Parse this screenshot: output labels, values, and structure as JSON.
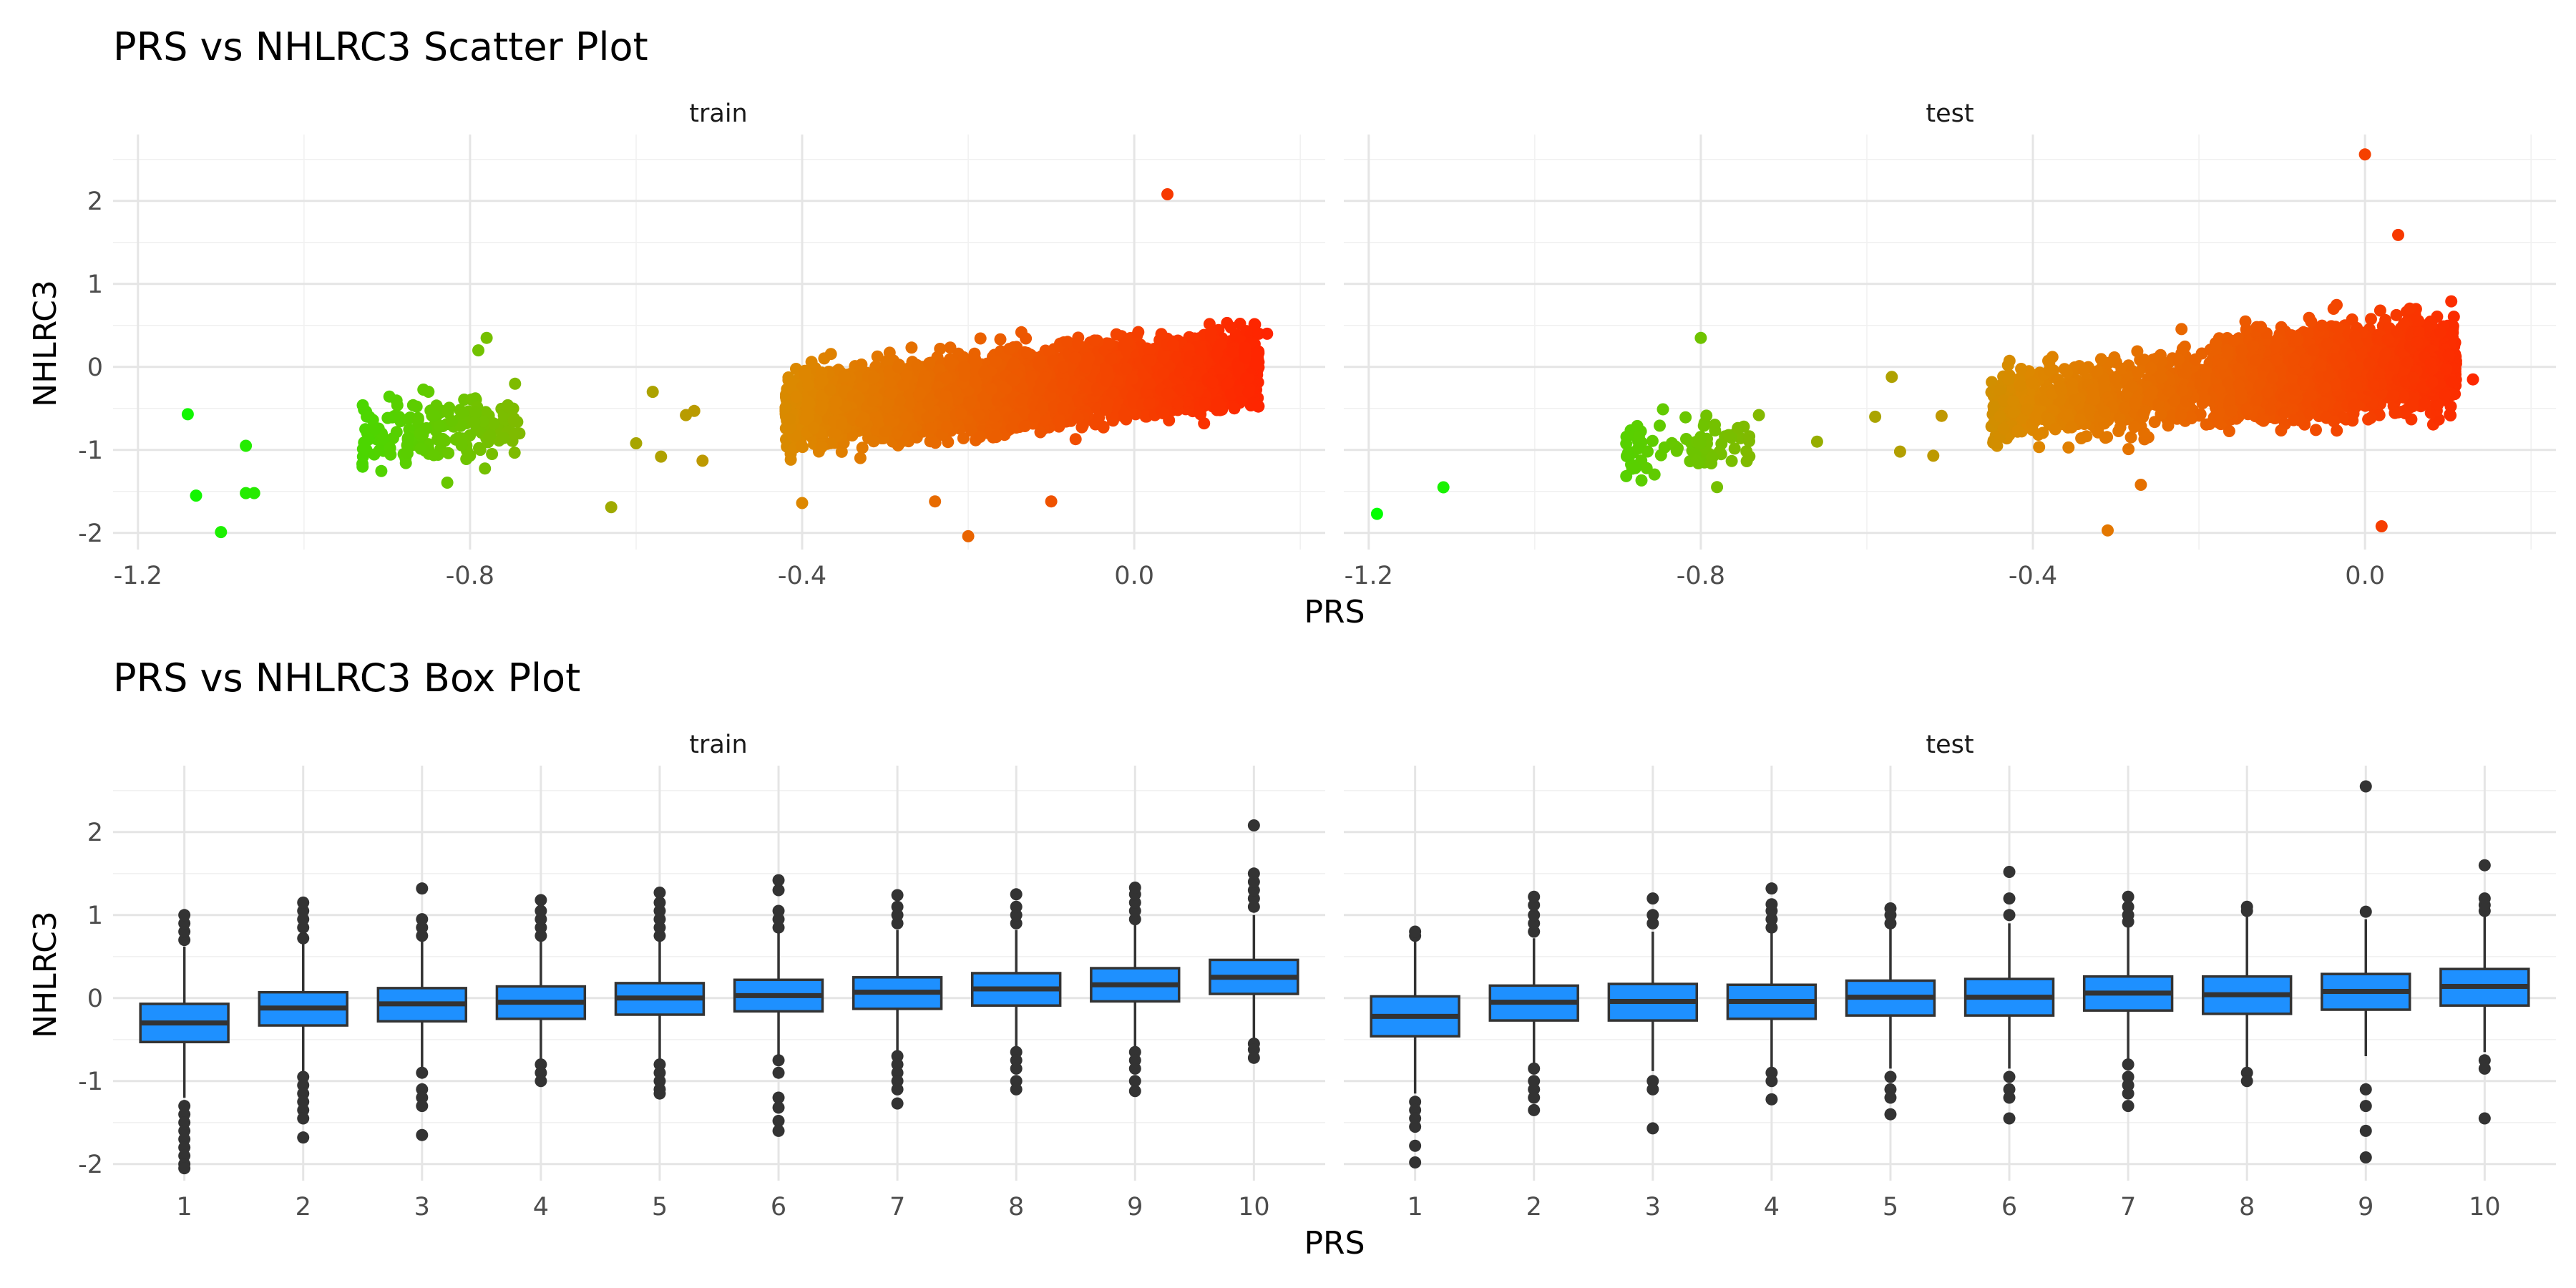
{
  "figure": {
    "scatter_title": "PRS vs NHLRC3 Scatter Plot",
    "box_title": "PRS vs NHLRC3 Box Plot",
    "xlabel": "PRS",
    "ylabel": "NHLRC3",
    "panels": [
      "train",
      "test"
    ]
  },
  "colors": {
    "gradient_low": "#00ff00",
    "gradient_mid": "#dd8800",
    "gradient_high": "#ff2200",
    "box_fill": "#1e90ff",
    "box_line": "#333333"
  },
  "chart_data": [
    {
      "type": "scatter",
      "title": "PRS vs NHLRC3 Scatter Plot",
      "xlabel": "PRS",
      "ylabel": "NHLRC3",
      "facets": [
        "train",
        "test"
      ],
      "xlim": [
        -1.23,
        0.23
      ],
      "ylim": [
        -2.2,
        2.8
      ],
      "x_ticks": [
        -1.2,
        -0.8,
        -0.4,
        0.0
      ],
      "x_tick_labels": [
        "-1.2",
        "-0.8",
        "-0.4",
        "0.0"
      ],
      "y_ticks": [
        -2,
        -1,
        0,
        1,
        2
      ],
      "y_tick_labels": [
        "-2",
        "-1",
        "0",
        "1",
        "2"
      ],
      "color_by": "PRS",
      "grid": true,
      "series": [
        {
          "facet": "train",
          "clusters": [
            {
              "x_range": [
                -0.93,
                -0.74
              ],
              "y_center": -0.75,
              "y_spread": 0.3,
              "count": 180
            },
            {
              "x_range": [
                -0.42,
                0.15
              ],
              "y_center": -0.25,
              "y_spread": 0.3,
              "count": 4500
            }
          ],
          "outliers": [
            {
              "x": -1.14,
              "y": -0.57
            },
            {
              "x": -1.13,
              "y": -1.55
            },
            {
              "x": -1.1,
              "y": -1.99
            },
            {
              "x": -1.07,
              "y": -0.95
            },
            {
              "x": -1.07,
              "y": -1.52
            },
            {
              "x": -1.06,
              "y": -1.52
            },
            {
              "x": -0.78,
              "y": 0.35
            },
            {
              "x": -0.79,
              "y": 0.2
            },
            {
              "x": -0.63,
              "y": -1.69
            },
            {
              "x": -0.6,
              "y": -0.92
            },
            {
              "x": -0.58,
              "y": -0.3
            },
            {
              "x": -0.57,
              "y": -1.08
            },
            {
              "x": -0.54,
              "y": -0.58
            },
            {
              "x": -0.52,
              "y": -1.13
            },
            {
              "x": -0.53,
              "y": -0.53
            },
            {
              "x": -0.4,
              "y": -1.64
            },
            {
              "x": -0.24,
              "y": -1.62
            },
            {
              "x": -0.2,
              "y": -2.04
            },
            {
              "x": -0.1,
              "y": -1.62
            },
            {
              "x": 0.04,
              "y": 2.08
            },
            {
              "x": 0.15,
              "y": 0.4
            },
            {
              "x": 0.16,
              "y": 0.4
            }
          ]
        },
        {
          "facet": "test",
          "clusters": [
            {
              "x_range": [
                -0.89,
                -0.74
              ],
              "y_center": -0.95,
              "y_spread": 0.25,
              "count": 80
            },
            {
              "x_range": [
                -0.45,
                -0.17
              ],
              "y_center": -0.35,
              "y_spread": 0.3,
              "count": 700
            },
            {
              "x_range": [
                -0.18,
                0.11
              ],
              "y_center": -0.05,
              "y_spread": 0.35,
              "count": 2500
            }
          ],
          "outliers": [
            {
              "x": -1.19,
              "y": -1.77
            },
            {
              "x": -1.11,
              "y": -1.45
            },
            {
              "x": -0.8,
              "y": 0.35
            },
            {
              "x": -0.73,
              "y": -0.58
            },
            {
              "x": -0.66,
              "y": -0.9
            },
            {
              "x": -0.57,
              "y": -0.12
            },
            {
              "x": -0.59,
              "y": -0.6
            },
            {
              "x": -0.56,
              "y": -1.02
            },
            {
              "x": -0.52,
              "y": -1.07
            },
            {
              "x": -0.51,
              "y": -0.59
            },
            {
              "x": -0.43,
              "y": 0.02
            },
            {
              "x": -0.31,
              "y": -1.97
            },
            {
              "x": -0.27,
              "y": -1.42
            },
            {
              "x": 0.02,
              "y": -1.92
            },
            {
              "x": 0.0,
              "y": 2.56
            },
            {
              "x": 0.04,
              "y": 1.59
            },
            {
              "x": 0.13,
              "y": -0.15
            }
          ]
        }
      ]
    },
    {
      "type": "box",
      "title": "PRS vs NHLRC3 Box Plot",
      "xlabel": "PRS",
      "ylabel": "NHLRC3",
      "facets": [
        "train",
        "test"
      ],
      "categories": [
        "1",
        "2",
        "3",
        "4",
        "5",
        "6",
        "7",
        "8",
        "9",
        "10"
      ],
      "ylim": [
        -2.2,
        2.8
      ],
      "y_ticks": [
        -2,
        -1,
        0,
        1,
        2
      ],
      "y_tick_labels": [
        "-2",
        "-1",
        "0",
        "1",
        "2"
      ],
      "grid": true,
      "series": [
        {
          "facet": "train",
          "boxes": [
            {
              "q1": -0.53,
              "median": -0.3,
              "q3": -0.07,
              "lower": -1.2,
              "upper": 0.62,
              "outliers": [
                0.7,
                0.8,
                0.9,
                1.0,
                -1.3,
                -1.4,
                -1.5,
                -1.6,
                -1.7,
                -1.8,
                -1.9,
                -2.0,
                -2.05
              ]
            },
            {
              "q1": -0.33,
              "median": -0.12,
              "q3": 0.07,
              "lower": -0.88,
              "upper": 0.66,
              "outliers": [
                0.72,
                0.85,
                0.95,
                1.05,
                1.15,
                -0.95,
                -1.05,
                -1.15,
                -1.25,
                -1.35,
                -1.45,
                -1.68
              ]
            },
            {
              "q1": -0.28,
              "median": -0.07,
              "q3": 0.12,
              "lower": -0.85,
              "upper": 0.7,
              "outliers": [
                0.75,
                0.85,
                0.95,
                1.32,
                -0.9,
                -1.1,
                -1.2,
                -1.3,
                -1.65
              ]
            },
            {
              "q1": -0.25,
              "median": -0.05,
              "q3": 0.14,
              "lower": -0.78,
              "upper": 0.7,
              "outliers": [
                0.75,
                0.85,
                0.95,
                1.05,
                1.18,
                -0.8,
                -0.9,
                -1.0
              ]
            },
            {
              "q1": -0.2,
              "median": 0.0,
              "q3": 0.18,
              "lower": -0.75,
              "upper": 0.7,
              "outliers": [
                0.75,
                0.85,
                0.95,
                1.05,
                1.15,
                1.27,
                -0.8,
                -0.9,
                -1.0,
                -1.1,
                -1.15
              ]
            },
            {
              "q1": -0.16,
              "median": 0.03,
              "q3": 0.22,
              "lower": -0.7,
              "upper": 0.78,
              "outliers": [
                0.85,
                0.95,
                1.05,
                1.3,
                1.42,
                -0.75,
                -0.9,
                -1.2,
                -1.32,
                -1.48,
                -1.6
              ]
            },
            {
              "q1": -0.13,
              "median": 0.07,
              "q3": 0.25,
              "lower": -0.7,
              "upper": 0.82,
              "outliers": [
                0.9,
                1.0,
                1.1,
                1.24,
                -0.7,
                -0.8,
                -0.9,
                -1.0,
                -1.1,
                -1.27
              ]
            },
            {
              "q1": -0.09,
              "median": 0.11,
              "q3": 0.3,
              "lower": -0.65,
              "upper": 0.82,
              "outliers": [
                0.9,
                1.0,
                1.1,
                1.25,
                -0.65,
                -0.75,
                -0.85,
                -1.0,
                -1.1
              ]
            },
            {
              "q1": -0.04,
              "median": 0.16,
              "q3": 0.36,
              "lower": -0.6,
              "upper": 0.9,
              "outliers": [
                0.95,
                1.05,
                1.15,
                1.25,
                1.33,
                -0.65,
                -0.75,
                -0.85,
                -1.0,
                -1.12
              ]
            },
            {
              "q1": 0.05,
              "median": 0.25,
              "q3": 0.46,
              "lower": -0.5,
              "upper": 1.0,
              "outliers": [
                1.1,
                1.2,
                1.3,
                1.4,
                1.5,
                2.08,
                -0.55,
                -0.62,
                -0.72
              ]
            }
          ]
        },
        {
          "facet": "test",
          "boxes": [
            {
              "q1": -0.46,
              "median": -0.22,
              "q3": 0.02,
              "lower": -1.15,
              "upper": 0.72,
              "outliers": [
                0.75,
                0.8,
                -1.25,
                -1.35,
                -1.45,
                -1.55,
                -1.78,
                -1.98
              ]
            },
            {
              "q1": -0.27,
              "median": -0.05,
              "q3": 0.15,
              "lower": -0.82,
              "upper": 0.72,
              "outliers": [
                0.8,
                0.9,
                1.0,
                1.12,
                1.22,
                -0.85,
                -1.0,
                -1.1,
                -1.2,
                -1.35
              ]
            },
            {
              "q1": -0.27,
              "median": -0.04,
              "q3": 0.17,
              "lower": -0.88,
              "upper": 0.8,
              "outliers": [
                0.9,
                1.0,
                1.2,
                -1.0,
                -1.1,
                -1.57
              ]
            },
            {
              "q1": -0.25,
              "median": -0.04,
              "q3": 0.16,
              "lower": -0.85,
              "upper": 0.8,
              "outliers": [
                0.85,
                0.95,
                1.05,
                1.13,
                1.32,
                -0.9,
                -1.0,
                -1.22
              ]
            },
            {
              "q1": -0.21,
              "median": 0.01,
              "q3": 0.21,
              "lower": -0.85,
              "upper": 0.83,
              "outliers": [
                0.9,
                1.0,
                1.08,
                -0.95,
                -1.1,
                -1.2,
                -1.4
              ]
            },
            {
              "q1": -0.21,
              "median": 0.01,
              "q3": 0.23,
              "lower": -0.85,
              "upper": 0.9,
              "outliers": [
                1.0,
                1.2,
                1.52,
                -0.95,
                -1.1,
                -1.2,
                -1.45
              ]
            },
            {
              "q1": -0.15,
              "median": 0.06,
              "q3": 0.26,
              "lower": -0.75,
              "upper": 0.85,
              "outliers": [
                0.92,
                1.0,
                1.1,
                1.22,
                -0.8,
                -0.95,
                -1.05,
                -1.15,
                -1.3
              ]
            },
            {
              "q1": -0.19,
              "median": 0.04,
              "q3": 0.26,
              "lower": -0.85,
              "upper": 0.98,
              "outliers": [
                1.05,
                1.1,
                -0.9,
                -1.0
              ]
            },
            {
              "q1": -0.14,
              "median": 0.08,
              "q3": 0.29,
              "lower": -0.7,
              "upper": 0.95,
              "outliers": [
                1.04,
                2.55,
                -1.1,
                -1.3,
                -1.6,
                -1.92
              ]
            },
            {
              "q1": -0.09,
              "median": 0.14,
              "q3": 0.35,
              "lower": -0.65,
              "upper": 1.0,
              "outliers": [
                1.05,
                1.12,
                1.2,
                1.6,
                -0.75,
                -0.85,
                -1.45
              ]
            }
          ]
        }
      ]
    }
  ]
}
